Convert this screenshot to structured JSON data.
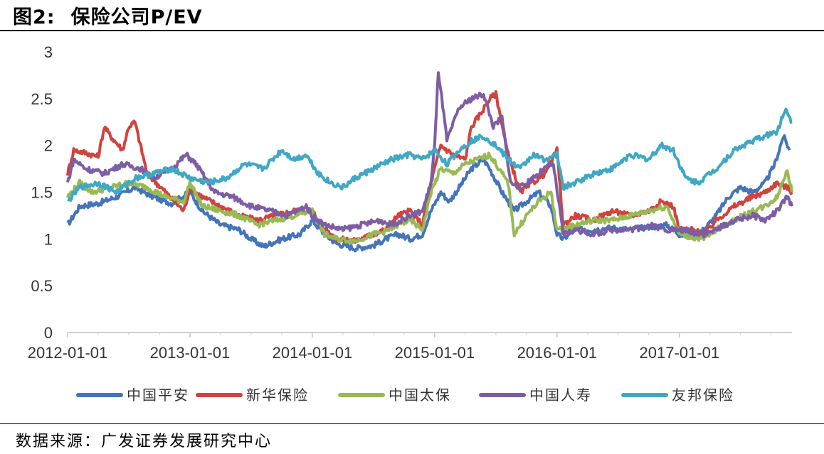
{
  "header": {
    "figure_label": "图2:",
    "title": "保险公司P/EV"
  },
  "footer": {
    "source": "数据来源：广发证券发展研究中心"
  },
  "chart_data": {
    "type": "line",
    "title": "保险公司P/EV",
    "xlabel": "",
    "ylabel": "",
    "ylim": [
      0,
      3
    ],
    "y_ticks": [
      "0",
      "0.5",
      "1",
      "1.5",
      "2",
      "2.5",
      "3"
    ],
    "x_ticks": [
      {
        "label": "2012-01-01",
        "t": 2012.0
      },
      {
        "label": "2013-01-01",
        "t": 2013.0
      },
      {
        "label": "2014-01-01",
        "t": 2014.0
      },
      {
        "label": "2015-01-01",
        "t": 2015.0
      },
      {
        "label": "2016-01-01",
        "t": 2016.0
      },
      {
        "label": "2017-01-01",
        "t": 2017.0
      }
    ],
    "xlim": [
      2012.0,
      2017.92
    ],
    "grid": false,
    "legend_position": "bottom",
    "series": [
      {
        "name": "中国平安",
        "color": "#4474b9",
        "x": [
          2012.0,
          2012.1,
          2012.25,
          2012.4,
          2012.55,
          2012.7,
          2012.85,
          2013.0,
          2013.1,
          2013.25,
          2013.4,
          2013.5,
          2013.6,
          2013.75,
          2013.9,
          2014.0,
          2014.1,
          2014.2,
          2014.35,
          2014.5,
          2014.6,
          2014.7,
          2014.8,
          2014.9,
          2014.97,
          2015.05,
          2015.12,
          2015.2,
          2015.3,
          2015.4,
          2015.45,
          2015.55,
          2015.65,
          2015.75,
          2015.85,
          2015.95,
          2016.0,
          2016.05,
          2016.15,
          2016.3,
          2016.45,
          2016.6,
          2016.75,
          2016.9,
          2017.0,
          2017.1,
          2017.2,
          2017.3,
          2017.4,
          2017.5,
          2017.6,
          2017.7,
          2017.78,
          2017.85,
          2017.9
        ],
        "values": [
          1.15,
          1.35,
          1.38,
          1.45,
          1.55,
          1.45,
          1.38,
          1.5,
          1.3,
          1.15,
          1.1,
          1.0,
          0.92,
          1.0,
          1.05,
          1.2,
          1.05,
          0.95,
          0.9,
          0.93,
          1.0,
          1.05,
          1.0,
          1.05,
          1.3,
          1.5,
          1.4,
          1.55,
          1.75,
          1.85,
          1.75,
          1.5,
          1.3,
          1.4,
          1.5,
          1.35,
          1.05,
          1.0,
          1.1,
          1.1,
          1.12,
          1.1,
          1.13,
          1.15,
          1.05,
          1.03,
          1.1,
          1.25,
          1.45,
          1.55,
          1.5,
          1.6,
          1.8,
          2.1,
          1.95
        ]
      },
      {
        "name": "新华保险",
        "color": "#d0433f",
        "x": [
          2012.0,
          2012.05,
          2012.15,
          2012.25,
          2012.3,
          2012.35,
          2012.45,
          2012.5,
          2012.55,
          2012.65,
          2012.8,
          2012.95,
          2013.0,
          2013.1,
          2013.25,
          2013.4,
          2013.55,
          2013.7,
          2013.85,
          2014.0,
          2014.1,
          2014.2,
          2014.35,
          2014.5,
          2014.6,
          2014.7,
          2014.8,
          2014.9,
          2014.97,
          2015.05,
          2015.15,
          2015.25,
          2015.3,
          2015.38,
          2015.45,
          2015.5,
          2015.6,
          2015.7,
          2015.8,
          2015.9,
          2016.0,
          2016.05,
          2016.15,
          2016.3,
          2016.45,
          2016.6,
          2016.75,
          2016.85,
          2016.95,
          2017.0,
          2017.1,
          2017.2,
          2017.3,
          2017.45,
          2017.6,
          2017.7,
          2017.8,
          2017.88,
          2017.92
        ],
        "values": [
          1.7,
          1.95,
          1.92,
          1.88,
          2.2,
          2.1,
          1.95,
          2.2,
          2.25,
          1.7,
          1.5,
          1.3,
          1.55,
          1.45,
          1.35,
          1.25,
          1.2,
          1.25,
          1.3,
          1.3,
          1.1,
          1.0,
          0.98,
          1.05,
          1.1,
          1.25,
          1.3,
          1.15,
          1.6,
          2.0,
          1.9,
          1.85,
          2.2,
          2.35,
          2.5,
          2.55,
          1.9,
          1.5,
          1.6,
          1.7,
          1.95,
          1.15,
          1.25,
          1.2,
          1.3,
          1.25,
          1.3,
          1.4,
          1.35,
          1.1,
          1.1,
          1.05,
          1.2,
          1.35,
          1.45,
          1.5,
          1.6,
          1.55,
          1.5
        ]
      },
      {
        "name": "中国太保",
        "color": "#98b954",
        "x": [
          2012.0,
          2012.1,
          2012.2,
          2012.35,
          2012.5,
          2012.65,
          2012.8,
          2012.95,
          2013.0,
          2013.1,
          2013.25,
          2013.4,
          2013.55,
          2013.7,
          2013.85,
          2014.0,
          2014.1,
          2014.2,
          2014.35,
          2014.5,
          2014.6,
          2014.7,
          2014.8,
          2014.9,
          2014.97,
          2015.05,
          2015.15,
          2015.25,
          2015.35,
          2015.45,
          2015.5,
          2015.6,
          2015.65,
          2015.75,
          2015.85,
          2015.95,
          2016.0,
          2016.05,
          2016.15,
          2016.3,
          2016.45,
          2016.6,
          2016.75,
          2016.9,
          2017.0,
          2017.1,
          2017.2,
          2017.3,
          2017.45,
          2017.6,
          2017.7,
          2017.8,
          2017.88,
          2017.92
        ],
        "values": [
          1.45,
          1.6,
          1.5,
          1.55,
          1.6,
          1.55,
          1.45,
          1.4,
          1.6,
          1.35,
          1.3,
          1.25,
          1.15,
          1.2,
          1.25,
          1.3,
          1.05,
          1.0,
          0.98,
          1.05,
          1.08,
          1.15,
          1.2,
          1.1,
          1.5,
          1.75,
          1.7,
          1.8,
          1.85,
          1.9,
          1.8,
          1.6,
          1.05,
          1.25,
          1.4,
          1.5,
          1.1,
          1.1,
          1.15,
          1.2,
          1.2,
          1.25,
          1.3,
          1.35,
          1.05,
          1.02,
          1.0,
          1.1,
          1.2,
          1.3,
          1.35,
          1.45,
          1.75,
          1.5
        ]
      },
      {
        "name": "中国人寿",
        "color": "#7d5ea5",
        "x": [
          2012.0,
          2012.05,
          2012.15,
          2012.3,
          2012.45,
          2012.6,
          2012.7,
          2012.85,
          2012.97,
          2013.05,
          2013.2,
          2013.35,
          2013.5,
          2013.65,
          2013.8,
          2013.95,
          2014.0,
          2014.1,
          2014.25,
          2014.4,
          2014.55,
          2014.65,
          2014.8,
          2014.9,
          2014.97,
          2015.0,
          2015.03,
          2015.1,
          2015.2,
          2015.3,
          2015.4,
          2015.48,
          2015.55,
          2015.62,
          2015.7,
          2015.8,
          2015.9,
          2015.97,
          2016.05,
          2016.15,
          2016.3,
          2016.45,
          2016.6,
          2016.75,
          2016.9,
          2017.0,
          2017.1,
          2017.2,
          2017.3,
          2017.45,
          2017.6,
          2017.7,
          2017.8,
          2017.88,
          2017.92
        ],
        "values": [
          1.6,
          1.85,
          1.75,
          1.7,
          1.8,
          1.75,
          1.65,
          1.75,
          1.9,
          1.8,
          1.5,
          1.45,
          1.35,
          1.3,
          1.25,
          1.35,
          1.25,
          1.15,
          1.1,
          1.15,
          1.2,
          1.15,
          1.25,
          1.3,
          1.6,
          2.0,
          2.8,
          2.05,
          2.4,
          2.5,
          2.55,
          2.2,
          2.3,
          1.6,
          1.55,
          1.65,
          1.75,
          1.8,
          1.05,
          1.1,
          1.05,
          1.1,
          1.1,
          1.15,
          1.1,
          1.1,
          1.08,
          1.05,
          1.1,
          1.2,
          1.25,
          1.2,
          1.3,
          1.45,
          1.35
        ]
      },
      {
        "name": "友邦保险",
        "color": "#40a8c4",
        "x": [
          2012.0,
          2012.1,
          2012.25,
          2012.4,
          2012.55,
          2012.7,
          2012.85,
          2013.0,
          2013.15,
          2013.3,
          2013.45,
          2013.6,
          2013.75,
          2013.85,
          2013.95,
          2014.05,
          2014.15,
          2014.25,
          2014.35,
          2014.5,
          2014.65,
          2014.8,
          2014.9,
          2015.0,
          2015.1,
          2015.2,
          2015.3,
          2015.4,
          2015.5,
          2015.6,
          2015.7,
          2015.8,
          2015.9,
          2016.0,
          2016.05,
          2016.15,
          2016.3,
          2016.45,
          2016.6,
          2016.75,
          2016.85,
          2016.95,
          2017.05,
          2017.15,
          2017.3,
          2017.45,
          2017.6,
          2017.7,
          2017.8,
          2017.87,
          2017.92
        ],
        "values": [
          1.4,
          1.55,
          1.6,
          1.5,
          1.65,
          1.7,
          1.75,
          1.65,
          1.6,
          1.65,
          1.8,
          1.75,
          1.95,
          1.85,
          1.9,
          1.7,
          1.6,
          1.55,
          1.65,
          1.75,
          1.85,
          1.9,
          1.85,
          1.95,
          1.8,
          1.95,
          2.05,
          2.1,
          2.0,
          1.85,
          1.75,
          1.9,
          1.85,
          1.9,
          1.55,
          1.6,
          1.7,
          1.75,
          1.9,
          1.85,
          2.0,
          1.95,
          1.65,
          1.6,
          1.75,
          1.95,
          2.05,
          2.1,
          2.15,
          2.4,
          2.25
        ]
      }
    ]
  }
}
